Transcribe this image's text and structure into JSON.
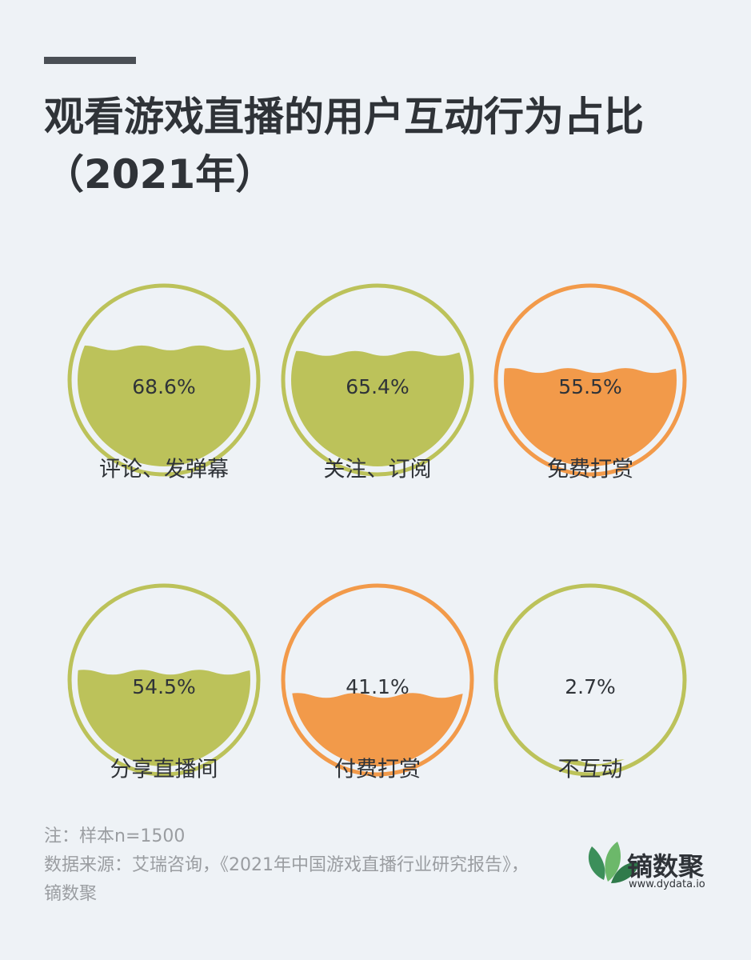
{
  "title": "观看游戏直播的用户互动行为占比（2021年）",
  "chart_data": {
    "type": "liquid",
    "categories": [
      "评论、发弹幕",
      "关注、订阅",
      "免费打赏",
      "分享直播间",
      "付费打赏",
      "不互动"
    ],
    "values": [
      68.6,
      65.4,
      55.5,
      54.5,
      41.1,
      2.7
    ],
    "value_labels": [
      "68.6%",
      "65.4%",
      "55.5%",
      "54.5%",
      "41.1%",
      "2.7%"
    ],
    "colors": [
      "#bcc25a",
      "#bcc25a",
      "#f29a4a",
      "#bcc25a",
      "#f29a4a",
      "#bcc25a"
    ]
  },
  "notes": {
    "sample": "注：样本n=1500",
    "source": "数据来源：艾瑞咨询，《2021年中国游戏直播行业研究报告》，镝数聚"
  },
  "logo": {
    "name": "镝数聚",
    "url": "www.dydata.io"
  }
}
